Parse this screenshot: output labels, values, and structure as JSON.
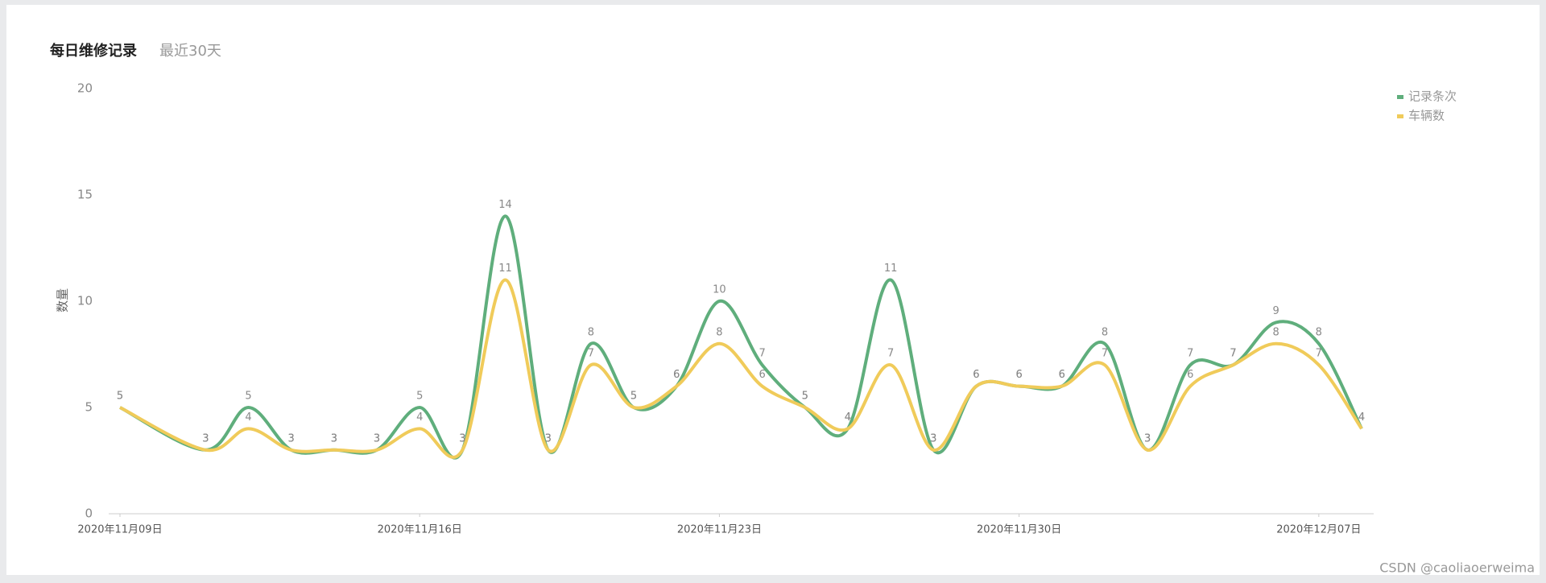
{
  "chart_data": {
    "type": "line",
    "title": "每日维修记录",
    "subtitle": "最近30天",
    "y_label": "数量",
    "x": [
      "2020-11-09",
      "2020-11-11",
      "2020-11-12",
      "2020-11-13",
      "2020-11-14",
      "2020-11-15",
      "2020-11-16",
      "2020-11-17",
      "2020-11-18",
      "2020-11-19",
      "2020-11-20",
      "2020-11-21",
      "2020-11-22",
      "2020-11-23",
      "2020-11-24",
      "2020-11-25",
      "2020-11-26",
      "2020-11-27",
      "2020-11-28",
      "2020-11-29",
      "2020-11-30",
      "2020-12-01",
      "2020-12-02",
      "2020-12-03",
      "2020-12-04",
      "2020-12-05",
      "2020-12-06",
      "2020-12-07",
      "2020-12-08"
    ],
    "series": [
      {
        "name": "记录条次",
        "color": "#5fae7c",
        "values": [
          5,
          3,
          5,
          3,
          3,
          3,
          5,
          3,
          14,
          3,
          8,
          5,
          6,
          10,
          7,
          5,
          4,
          11,
          3,
          6,
          6,
          6,
          8,
          3,
          7,
          7,
          9,
          8,
          4
        ]
      },
      {
        "name": "车辆数",
        "color": "#f0cb5a",
        "values": [
          5,
          3,
          4,
          3,
          3,
          3,
          4,
          3,
          11,
          3,
          7,
          5,
          6,
          8,
          6,
          5,
          4,
          7,
          3,
          6,
          6,
          6,
          7,
          3,
          6,
          7,
          8,
          7,
          4
        ]
      }
    ],
    "xlim": [
      "2020-11-09",
      "2020-12-08"
    ],
    "xticks": [
      {
        "value": "2020-11-09",
        "label": "2020年11月09日"
      },
      {
        "value": "2020-11-16",
        "label": "2020年11月16日"
      },
      {
        "value": "2020-11-23",
        "label": "2020年11月23日"
      },
      {
        "value": "2020-11-30",
        "label": "2020年11月30日"
      },
      {
        "value": "2020-12-07",
        "label": "2020年12月07日"
      }
    ],
    "ylim": [
      0,
      20
    ],
    "yticks": [
      0,
      5,
      10,
      15,
      20
    ],
    "legend": "top-right"
  },
  "watermark": "CSDN @caoliaoerweima"
}
